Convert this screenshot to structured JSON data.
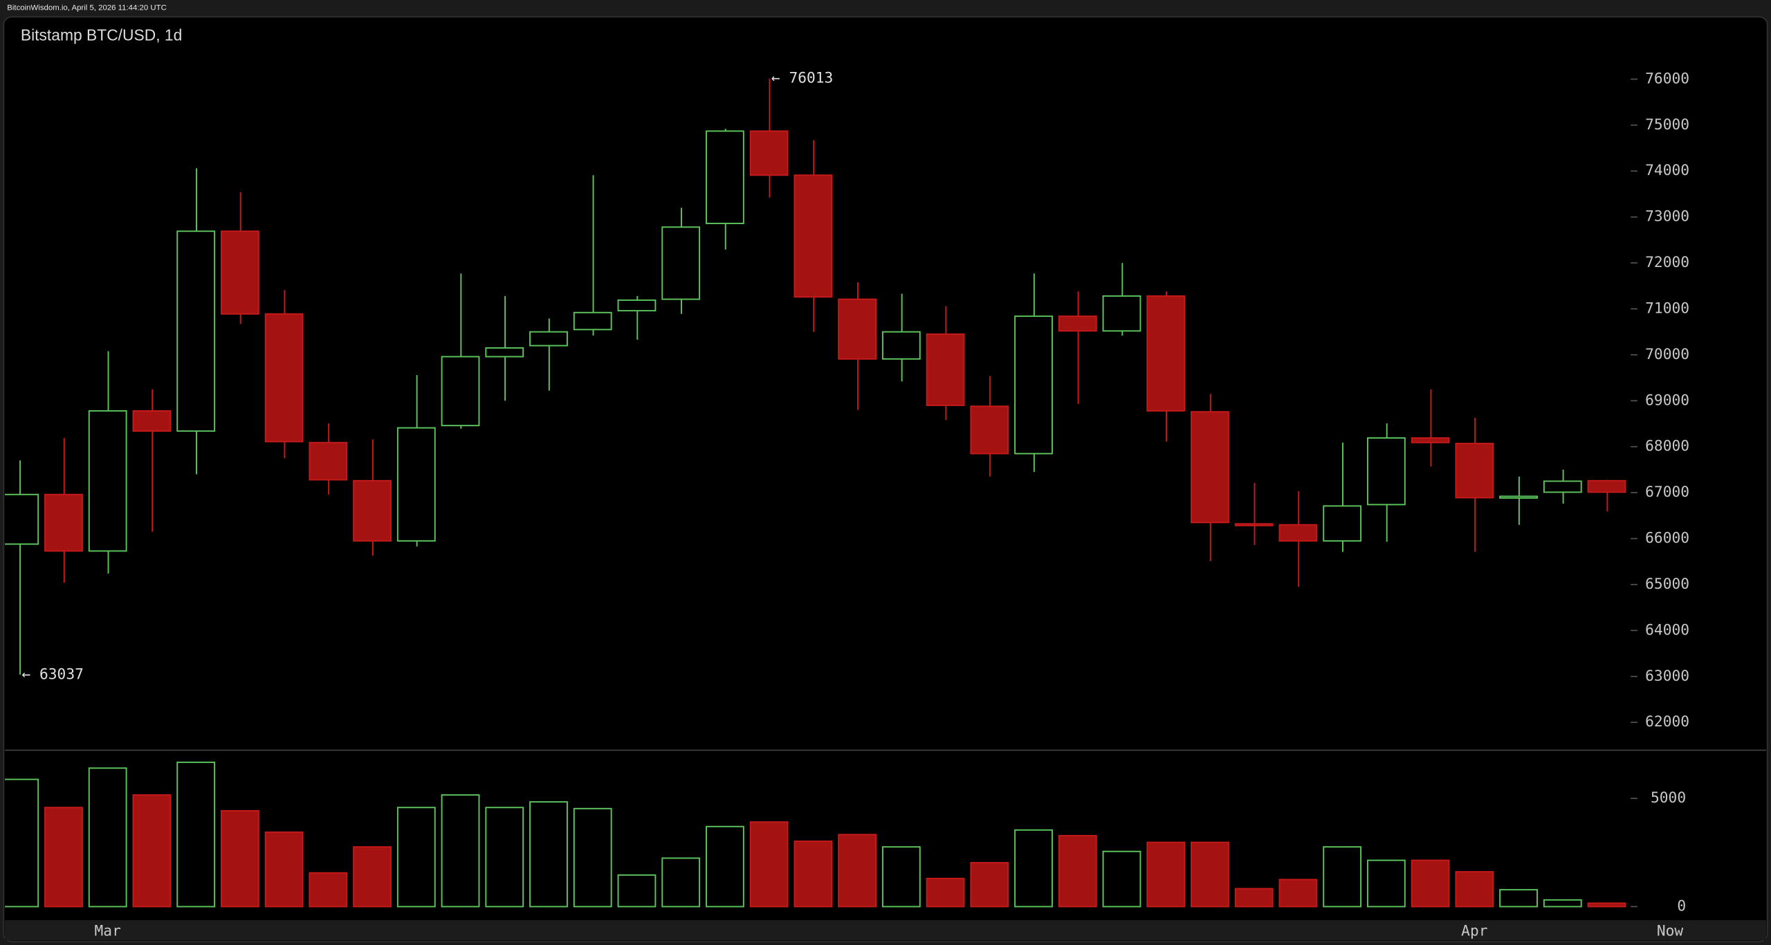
{
  "chart_data": {
    "type": "candlestick",
    "header": "BitcoinWisdom.io, April 5, 2026 11:44:20 UTC",
    "title": "Bitstamp BTC/USD, 1d",
    "categories": [
      null,
      null,
      "Mar",
      null,
      null,
      null,
      null,
      null,
      null,
      null,
      null,
      null,
      null,
      null,
      null,
      null,
      null,
      null,
      null,
      null,
      null,
      null,
      null,
      null,
      null,
      null,
      null,
      null,
      null,
      null,
      null,
      null,
      null,
      "Apr",
      null,
      null,
      null
    ],
    "x_end_label": "Now",
    "open": [
      65880,
      66960,
      65730,
      68780,
      68340,
      72690,
      70890,
      68090,
      67260,
      65950,
      68460,
      69960,
      70200,
      70550,
      70960,
      71210,
      72860,
      74870,
      73910,
      71210,
      69910,
      70450,
      68880,
      67850,
      70840,
      70520,
      71280,
      68760,
      66320,
      66300,
      65950,
      66740,
      68190,
      68070,
      66910,
      67010,
      67260
    ],
    "high": [
      67700,
      68190,
      70080,
      69250,
      74060,
      73540,
      71410,
      68510,
      68160,
      69560,
      71770,
      71280,
      70790,
      73910,
      71280,
      73200,
      74920,
      76013,
      74670,
      71580,
      71330,
      71060,
      69540,
      71770,
      71380,
      72000,
      71380,
      69150,
      67210,
      67030,
      68090,
      68510,
      69250,
      68630,
      67350,
      67500,
      67280
    ],
    "low": [
      63037,
      65040,
      65240,
      66150,
      67400,
      70670,
      67750,
      66960,
      65630,
      65830,
      68390,
      69000,
      69220,
      70420,
      70330,
      70890,
      72290,
      73420,
      70500,
      68800,
      69420,
      68580,
      67350,
      67450,
      68930,
      70420,
      68110,
      65510,
      65860,
      64950,
      65710,
      65930,
      67570,
      65710,
      66300,
      66760,
      66590
    ],
    "close": [
      66960,
      65730,
      68780,
      68340,
      72690,
      70890,
      68110,
      67280,
      65950,
      68410,
      69960,
      70150,
      70500,
      70920,
      71190,
      72780,
      74870,
      73910,
      71260,
      69910,
      70500,
      68900,
      67850,
      70840,
      70520,
      71280,
      68780,
      66350,
      66300,
      65950,
      66710,
      68190,
      68090,
      66890,
      66920,
      67250,
      67010
    ],
    "volume": [
      5880,
      4580,
      6400,
      5160,
      6670,
      4430,
      3440,
      1560,
      2760,
      4580,
      5160,
      4580,
      4840,
      4530,
      1460,
      2240,
      3700,
      3910,
      3020,
      3330,
      2760,
      1300,
      2030,
      3540,
      3280,
      2550,
      2970,
      2970,
      830,
      1250,
      2760,
      2140,
      2140,
      1610,
      780,
      310,
      160
    ],
    "ylim": [
      61430,
      76740
    ],
    "yticks": [
      62000,
      63000,
      64000,
      65000,
      66000,
      67000,
      68000,
      69000,
      70000,
      71000,
      72000,
      73000,
      74000,
      75000,
      76000
    ],
    "volume_ylim": [
      0,
      7200
    ],
    "volume_yticks": [
      0,
      5000
    ],
    "up_color": "#5cc35c",
    "down_color": "#a51212",
    "annotations": [
      {
        "text": "← 76013"
      },
      {
        "text": "← 63037"
      }
    ]
  }
}
